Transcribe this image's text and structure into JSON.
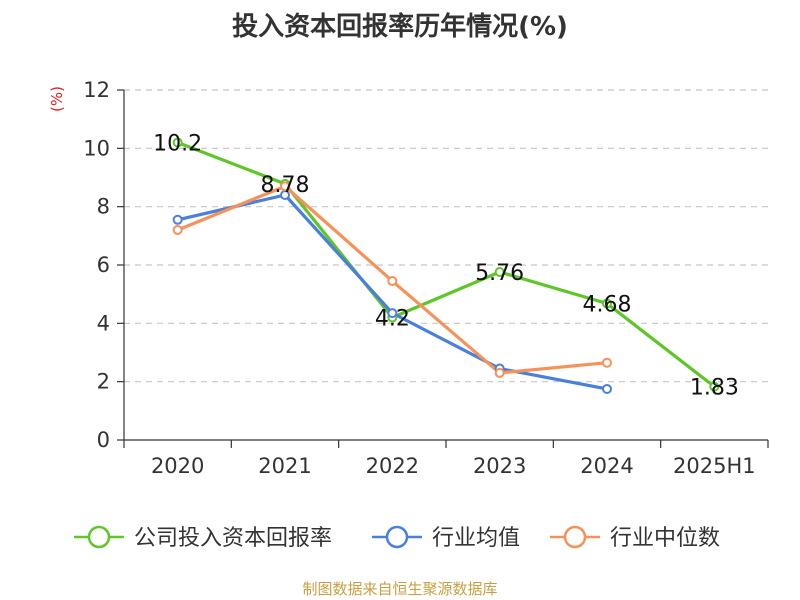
{
  "chart_data": {
    "type": "line",
    "title": "投入资本回报率历年情况(%)",
    "ylabel": "(%)",
    "categories": [
      "2020",
      "2021",
      "2022",
      "2023",
      "2024",
      "2025H1"
    ],
    "ylim": [
      0,
      12
    ],
    "yticks": [
      0,
      2,
      4,
      6,
      8,
      10,
      12
    ],
    "grid": true,
    "legend_position": "bottom",
    "series": [
      {
        "name": "公司投入资本回报率",
        "color": "#5ec628",
        "values": [
          10.2,
          8.78,
          4.2,
          5.76,
          4.68,
          1.83
        ],
        "labels": [
          "10.2",
          "8.78",
          "4.2",
          "5.76",
          "4.68",
          "1.83"
        ]
      },
      {
        "name": "行业均值",
        "color": "#4a7fdc",
        "values": [
          7.55,
          8.4,
          4.35,
          2.45,
          1.75,
          null
        ]
      },
      {
        "name": "行业中位数",
        "color": "#f5925a",
        "values": [
          7.2,
          8.7,
          5.45,
          2.3,
          2.65,
          null
        ]
      }
    ]
  },
  "source": "制图数据来自恒生聚源数据库"
}
